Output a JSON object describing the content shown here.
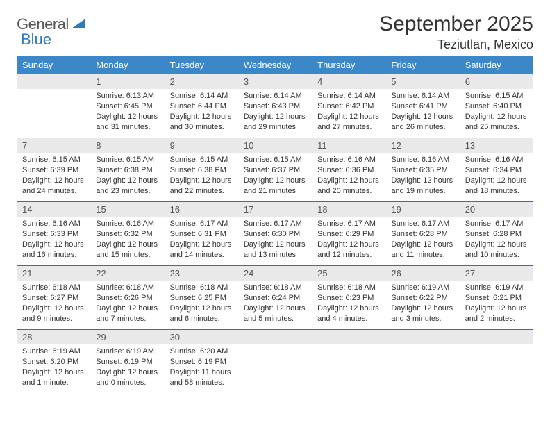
{
  "logo": {
    "textGray": "General",
    "textBlue": "Blue"
  },
  "title": "September 2025",
  "subtitle": "Teziutlan, Mexico",
  "colors": {
    "headerBg": "#3b87c8",
    "headerText": "#ffffff",
    "dayNumBg": "#e9e9e9",
    "dayNumBorder": "#3b6fa0",
    "bodyText": "#333333",
    "pageBg": "#ffffff",
    "logoGray": "#5a5a5a",
    "logoBlue": "#2f79bd"
  },
  "columns": [
    "Sunday",
    "Monday",
    "Tuesday",
    "Wednesday",
    "Thursday",
    "Friday",
    "Saturday"
  ],
  "weeks": [
    [
      {
        "n": "",
        "lines": []
      },
      {
        "n": "1",
        "lines": [
          "Sunrise: 6:13 AM",
          "Sunset: 6:45 PM",
          "Daylight: 12 hours and 31 minutes."
        ]
      },
      {
        "n": "2",
        "lines": [
          "Sunrise: 6:14 AM",
          "Sunset: 6:44 PM",
          "Daylight: 12 hours and 30 minutes."
        ]
      },
      {
        "n": "3",
        "lines": [
          "Sunrise: 6:14 AM",
          "Sunset: 6:43 PM",
          "Daylight: 12 hours and 29 minutes."
        ]
      },
      {
        "n": "4",
        "lines": [
          "Sunrise: 6:14 AM",
          "Sunset: 6:42 PM",
          "Daylight: 12 hours and 27 minutes."
        ]
      },
      {
        "n": "5",
        "lines": [
          "Sunrise: 6:14 AM",
          "Sunset: 6:41 PM",
          "Daylight: 12 hours and 26 minutes."
        ]
      },
      {
        "n": "6",
        "lines": [
          "Sunrise: 6:15 AM",
          "Sunset: 6:40 PM",
          "Daylight: 12 hours and 25 minutes."
        ]
      }
    ],
    [
      {
        "n": "7",
        "lines": [
          "Sunrise: 6:15 AM",
          "Sunset: 6:39 PM",
          "Daylight: 12 hours and 24 minutes."
        ]
      },
      {
        "n": "8",
        "lines": [
          "Sunrise: 6:15 AM",
          "Sunset: 6:38 PM",
          "Daylight: 12 hours and 23 minutes."
        ]
      },
      {
        "n": "9",
        "lines": [
          "Sunrise: 6:15 AM",
          "Sunset: 6:38 PM",
          "Daylight: 12 hours and 22 minutes."
        ]
      },
      {
        "n": "10",
        "lines": [
          "Sunrise: 6:15 AM",
          "Sunset: 6:37 PM",
          "Daylight: 12 hours and 21 minutes."
        ]
      },
      {
        "n": "11",
        "lines": [
          "Sunrise: 6:16 AM",
          "Sunset: 6:36 PM",
          "Daylight: 12 hours and 20 minutes."
        ]
      },
      {
        "n": "12",
        "lines": [
          "Sunrise: 6:16 AM",
          "Sunset: 6:35 PM",
          "Daylight: 12 hours and 19 minutes."
        ]
      },
      {
        "n": "13",
        "lines": [
          "Sunrise: 6:16 AM",
          "Sunset: 6:34 PM",
          "Daylight: 12 hours and 18 minutes."
        ]
      }
    ],
    [
      {
        "n": "14",
        "lines": [
          "Sunrise: 6:16 AM",
          "Sunset: 6:33 PM",
          "Daylight: 12 hours and 16 minutes."
        ]
      },
      {
        "n": "15",
        "lines": [
          "Sunrise: 6:16 AM",
          "Sunset: 6:32 PM",
          "Daylight: 12 hours and 15 minutes."
        ]
      },
      {
        "n": "16",
        "lines": [
          "Sunrise: 6:17 AM",
          "Sunset: 6:31 PM",
          "Daylight: 12 hours and 14 minutes."
        ]
      },
      {
        "n": "17",
        "lines": [
          "Sunrise: 6:17 AM",
          "Sunset: 6:30 PM",
          "Daylight: 12 hours and 13 minutes."
        ]
      },
      {
        "n": "18",
        "lines": [
          "Sunrise: 6:17 AM",
          "Sunset: 6:29 PM",
          "Daylight: 12 hours and 12 minutes."
        ]
      },
      {
        "n": "19",
        "lines": [
          "Sunrise: 6:17 AM",
          "Sunset: 6:28 PM",
          "Daylight: 12 hours and 11 minutes."
        ]
      },
      {
        "n": "20",
        "lines": [
          "Sunrise: 6:17 AM",
          "Sunset: 6:28 PM",
          "Daylight: 12 hours and 10 minutes."
        ]
      }
    ],
    [
      {
        "n": "21",
        "lines": [
          "Sunrise: 6:18 AM",
          "Sunset: 6:27 PM",
          "Daylight: 12 hours and 9 minutes."
        ]
      },
      {
        "n": "22",
        "lines": [
          "Sunrise: 6:18 AM",
          "Sunset: 6:26 PM",
          "Daylight: 12 hours and 7 minutes."
        ]
      },
      {
        "n": "23",
        "lines": [
          "Sunrise: 6:18 AM",
          "Sunset: 6:25 PM",
          "Daylight: 12 hours and 6 minutes."
        ]
      },
      {
        "n": "24",
        "lines": [
          "Sunrise: 6:18 AM",
          "Sunset: 6:24 PM",
          "Daylight: 12 hours and 5 minutes."
        ]
      },
      {
        "n": "25",
        "lines": [
          "Sunrise: 6:18 AM",
          "Sunset: 6:23 PM",
          "Daylight: 12 hours and 4 minutes."
        ]
      },
      {
        "n": "26",
        "lines": [
          "Sunrise: 6:19 AM",
          "Sunset: 6:22 PM",
          "Daylight: 12 hours and 3 minutes."
        ]
      },
      {
        "n": "27",
        "lines": [
          "Sunrise: 6:19 AM",
          "Sunset: 6:21 PM",
          "Daylight: 12 hours and 2 minutes."
        ]
      }
    ],
    [
      {
        "n": "28",
        "lines": [
          "Sunrise: 6:19 AM",
          "Sunset: 6:20 PM",
          "Daylight: 12 hours and 1 minute."
        ]
      },
      {
        "n": "29",
        "lines": [
          "Sunrise: 6:19 AM",
          "Sunset: 6:19 PM",
          "Daylight: 12 hours and 0 minutes."
        ]
      },
      {
        "n": "30",
        "lines": [
          "Sunrise: 6:20 AM",
          "Sunset: 6:19 PM",
          "Daylight: 11 hours and 58 minutes."
        ]
      },
      {
        "n": "",
        "lines": []
      },
      {
        "n": "",
        "lines": []
      },
      {
        "n": "",
        "lines": []
      },
      {
        "n": "",
        "lines": []
      }
    ]
  ]
}
